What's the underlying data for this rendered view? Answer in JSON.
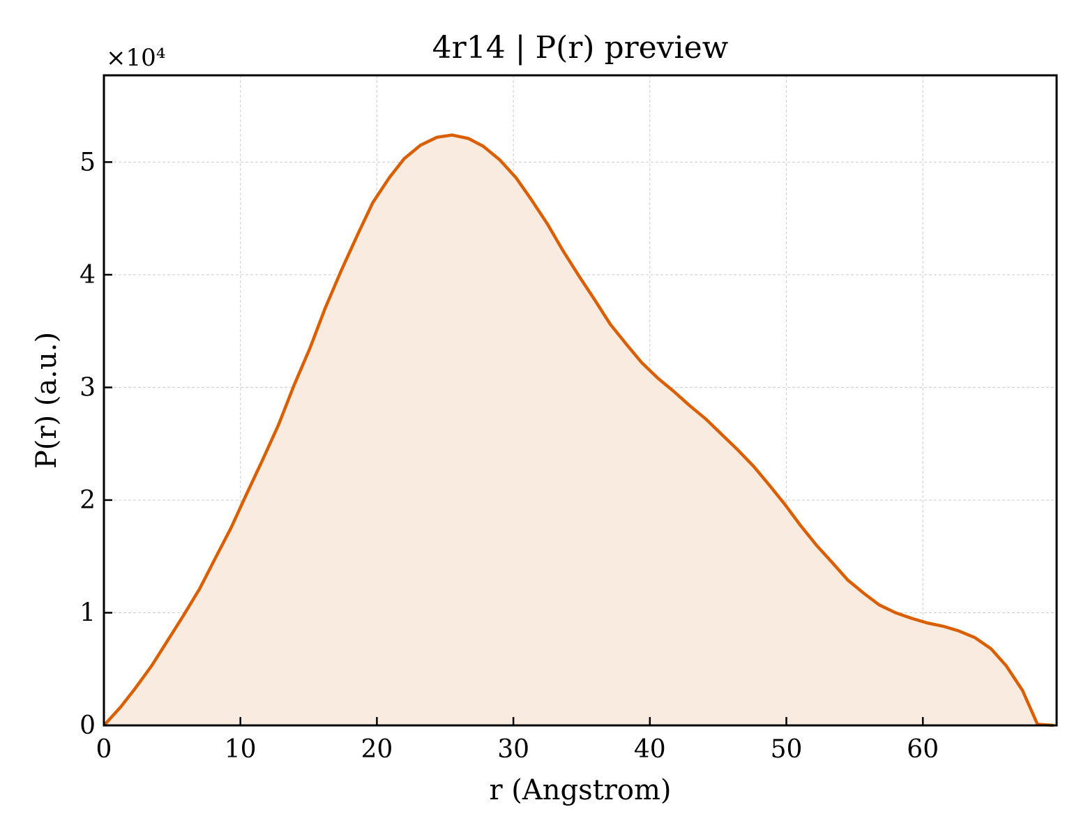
{
  "chart_data": {
    "type": "area",
    "title": "4r14 | P(r) preview",
    "xlabel": "r (Angstrom)",
    "ylabel": "P(r) (a.u.)",
    "y_multiplier_label": "×10⁴",
    "xlim": [
      0,
      69.8
    ],
    "ylim": [
      0,
      5.77
    ],
    "x_ticks": [
      0,
      10,
      20,
      30,
      40,
      50,
      60
    ],
    "y_ticks": [
      0,
      1,
      2,
      3,
      4,
      5
    ],
    "x_tick_labels": [
      "0",
      "10",
      "20",
      "30",
      "40",
      "50",
      "60"
    ],
    "y_tick_labels": [
      "0",
      "1",
      "2",
      "3",
      "4",
      "5"
    ],
    "grid": true,
    "legend": false,
    "line_color": "#d95f02",
    "fill_color": "#f9ebe0",
    "series": [
      {
        "x": [
          0,
          1.2,
          2.3,
          3.5,
          4.6,
          5.8,
          7.0,
          8.1,
          9.3,
          10.4,
          11.6,
          12.8,
          13.9,
          15.1,
          16.2,
          17.4,
          18.6,
          19.7,
          20.9,
          22.0,
          23.2,
          24.4,
          25.5,
          26.7,
          27.8,
          29.0,
          30.2,
          31.3,
          32.5,
          33.6,
          34.8,
          36.0,
          37.1,
          38.3,
          39.4,
          40.6,
          41.8,
          42.9,
          44.1,
          45.2,
          46.4,
          47.6,
          48.7,
          49.9,
          51.0,
          52.2,
          53.4,
          54.5,
          55.7,
          56.8,
          58.0,
          59.2,
          60.3,
          61.5,
          62.6,
          63.8,
          65.0,
          66.1,
          67.3,
          68.4,
          69.6
        ],
        "y": [
          0,
          0.16,
          0.33,
          0.53,
          0.74,
          0.97,
          1.21,
          1.47,
          1.75,
          2.04,
          2.35,
          2.67,
          3.01,
          3.35,
          3.7,
          4.04,
          4.36,
          4.64,
          4.86,
          5.03,
          5.15,
          5.22,
          5.24,
          5.21,
          5.14,
          5.02,
          4.86,
          4.67,
          4.45,
          4.22,
          3.99,
          3.77,
          3.56,
          3.38,
          3.22,
          3.08,
          2.96,
          2.84,
          2.72,
          2.59,
          2.45,
          2.3,
          2.14,
          1.96,
          1.78,
          1.6,
          1.44,
          1.29,
          1.17,
          1.07,
          1.0,
          0.95,
          0.91,
          0.88,
          0.84,
          0.78,
          0.68,
          0.53,
          0.31,
          0.01,
          0.0
        ]
      }
    ]
  }
}
